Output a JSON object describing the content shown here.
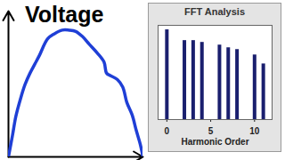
{
  "chart_data": [
    {
      "type": "line",
      "title": "Voltage",
      "x": [
        0,
        0.3,
        0.55,
        0.9,
        1.23,
        1.6,
        1.8,
        1.95,
        2.3,
        2.9,
        3.4,
        4.0,
        4.5,
        5.0,
        5.5,
        6.0,
        6.6,
        7.1,
        7.3,
        7.6,
        8.1,
        8.5,
        8.8,
        9.2,
        9.5,
        9.8,
        10
      ],
      "values": [
        0,
        0.17,
        0.32,
        0.46,
        0.57,
        0.66,
        0.7,
        0.73,
        0.8,
        0.93,
        0.97,
        1.0,
        1.0,
        0.99,
        0.95,
        0.89,
        0.82,
        0.75,
        0.66,
        0.64,
        0.61,
        0.55,
        0.43,
        0.33,
        0.21,
        0.1,
        0
      ],
      "color": "#1f3fd6",
      "xlim": [
        0,
        10
      ],
      "ylim": [
        0,
        1.15
      ],
      "tick_labels": false
    },
    {
      "type": "bar",
      "title": "FFT Analysis",
      "xlabel": "Harmonic Order",
      "x": [
        0,
        2,
        3,
        4,
        6,
        7,
        8,
        10,
        11
      ],
      "values": [
        1.0,
        0.88,
        0.88,
        0.86,
        0.83,
        0.8,
        0.78,
        0.72,
        0.62
      ],
      "color": "#1a1f6e",
      "xlim": [
        -1,
        12
      ],
      "xticks": [
        0,
        5,
        10
      ],
      "ylim": [
        0,
        1.05
      ],
      "tick_labels": "x"
    }
  ]
}
